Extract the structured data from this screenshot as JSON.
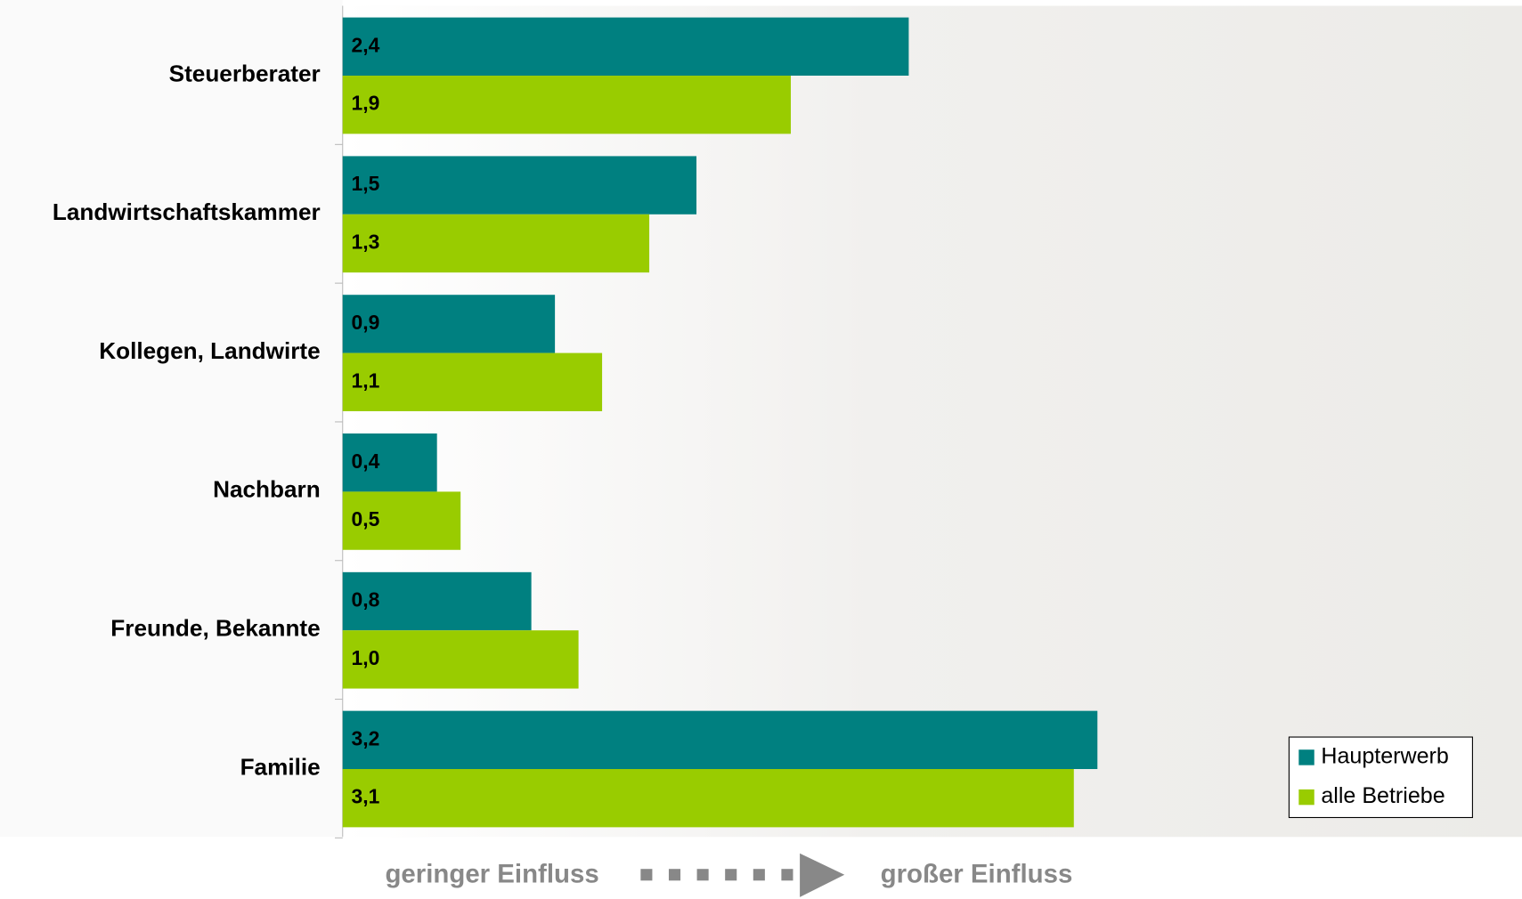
{
  "chart_data": {
    "type": "bar",
    "orientation": "horizontal",
    "categories": [
      "Steuerberater",
      "Landwirtschaftskammer",
      "Kollegen, Landwirte",
      "Nachbarn",
      "Freunde, Bekannte",
      "Familie"
    ],
    "series": [
      {
        "name": "Haupterwerb",
        "color": "#008080",
        "values": [
          2.4,
          1.5,
          0.9,
          0.4,
          0.8,
          3.2
        ],
        "value_labels": [
          "2,4",
          "1,5",
          "0,9",
          "0,4",
          "0,8",
          "3,2"
        ]
      },
      {
        "name": "alle Betriebe",
        "color": "#99cc00",
        "values": [
          1.9,
          1.3,
          1.1,
          0.5,
          1.0,
          3.1
        ],
        "value_labels": [
          "1,9",
          "1,3",
          "1,1",
          "0,5",
          "1,0",
          "3,1"
        ]
      }
    ],
    "xlim": [
      0,
      5
    ],
    "legend": "lower right",
    "annotations": [
      "geringer Einfluss",
      "großer Einfluss"
    ]
  }
}
